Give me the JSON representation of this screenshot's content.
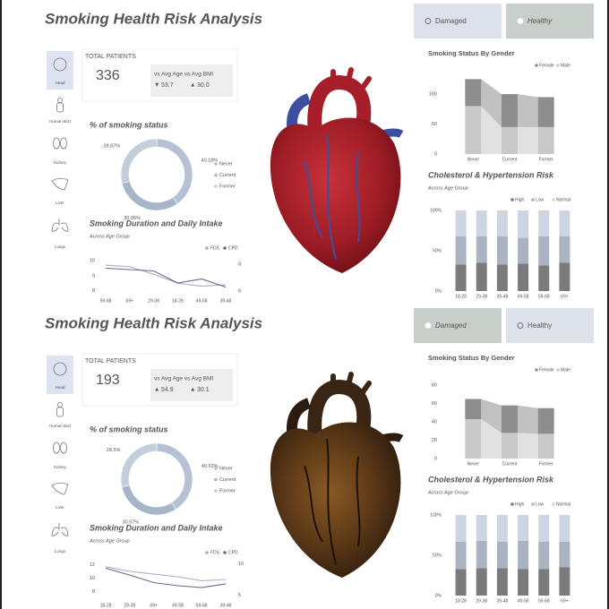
{
  "panels": [
    {
      "title": "Smoking Health Risk Analysis",
      "buttons": [
        "Damaged",
        "Healthy"
      ],
      "selected_button": 1,
      "nav": [
        "Head",
        "Human Bod",
        "Kidney",
        "Liver",
        "Lungs"
      ],
      "selected_nav": 0,
      "heart": "healthy",
      "kpi": {
        "label": "TOTAL PATIENTS",
        "value": 336,
        "compare_label": "vs Avg Age vs Avg BMI",
        "age": {
          "arrow": "▼",
          "value": "53.7"
        },
        "bmi": {
          "arrow": "▲",
          "value": "30.0"
        }
      },
      "donut": {
        "type": "donut",
        "title": "% of smoking status",
        "categories": [
          "Never",
          "Current",
          "Former"
        ],
        "values": [
          40.18,
          30.95,
          28.87
        ],
        "value_labels": [
          "40.18%",
          "30.95%",
          "28.87%"
        ],
        "colors": [
          "#b4c2d3",
          "#a6b5c8",
          "#c3cedb"
        ]
      },
      "line": {
        "type": "line",
        "title": "Smoking Duration and Daily Intake",
        "subtitle": "Across Age Group",
        "categories": [
          "59-68",
          "69+",
          "29-38",
          "18-28",
          "49-58",
          "39-48"
        ],
        "series": [
          {
            "name": "FDS",
            "color": "#a3aec0",
            "values": [
              9.7,
              9.6,
              9.1,
              8.5,
              8.3,
              8.4
            ]
          },
          {
            "name": "CPD",
            "color": "#6f6590",
            "axis": "y2",
            "values": [
              7.7,
              7.6,
              7.5,
              6.6,
              6.9,
              6.3
            ]
          }
        ],
        "ylim": [
          7.8,
          10.3
        ],
        "yticks": [
          8,
          9,
          10
        ],
        "y2lim": [
          5.8,
          8.6
        ],
        "y2ticks": [
          6,
          8
        ]
      },
      "ribbon": {
        "type": "ribbon",
        "title": "Smoking Status By Gender",
        "categories": [
          "Never",
          "Current",
          "Former"
        ],
        "series": [
          {
            "name": "Female",
            "color": "#8e8e8e",
            "values": [
              45,
              55,
              50
            ]
          },
          {
            "name": "Male",
            "color": "#c9c9c9",
            "values": [
              80,
              45,
              45
            ]
          }
        ],
        "ylim": [
          0,
          130
        ],
        "yticks": [
          0,
          50,
          100
        ]
      },
      "stacked": {
        "type": "stacked_bar_100",
        "title": "Cholesterol & Hypertension Risk",
        "subtitle": "Across Age Group",
        "categories": [
          "18-28",
          "29-38",
          "39-48",
          "49-58",
          "59-68",
          "69+"
        ],
        "series": [
          {
            "name": "High",
            "color": "#7b7b7d",
            "values": [
              33,
              35,
              33,
              34,
              32,
              35
            ]
          },
          {
            "name": "Low",
            "color": "#a9b3c1",
            "values": [
              35,
              33,
              35,
              32,
              36,
              33
            ]
          },
          {
            "name": "Normal",
            "color": "#ccd5e1",
            "values": [
              32,
              32,
              32,
              34,
              32,
              32
            ]
          }
        ],
        "ylim": [
          0,
          100
        ],
        "yticks": [
          {
            "value": 0,
            "label": "0%"
          },
          {
            "value": 50,
            "label": "50%"
          },
          {
            "value": 100,
            "label": "100%"
          }
        ]
      }
    },
    {
      "title": "Smoking Health Risk Analysis",
      "buttons": [
        "Damaged",
        "Healthy"
      ],
      "selected_button": 0,
      "nav": [
        "Head",
        "Human Bod",
        "Kidney",
        "Liver",
        "Lungs"
      ],
      "selected_nav": 0,
      "heart": "damaged",
      "kpi": {
        "label": "TOTAL PATIENTS",
        "value": 193,
        "compare_label": "vs Avg Age vs Avg BMI",
        "age": {
          "arrow": "▲",
          "value": "54.9"
        },
        "bmi": {
          "arrow": "▲",
          "value": "30.1"
        }
      },
      "donut": {
        "type": "donut",
        "title": "% of smoking status",
        "categories": [
          "Never",
          "Current",
          "Former"
        ],
        "values": [
          40.93,
          30.57,
          28.5
        ],
        "value_labels": [
          "40.93%",
          "30.57%",
          "28.5%"
        ],
        "colors": [
          "#b4c2d3",
          "#a6b5c8",
          "#c3cedb"
        ]
      },
      "line": {
        "type": "line",
        "title": "Smoking Duration and Daily Intake",
        "subtitle": "Across Age Group",
        "categories": [
          "18-28",
          "29-38",
          "69+",
          "49-58",
          "59-68",
          "39-48"
        ],
        "series": [
          {
            "name": "FDS",
            "color": "#a3aec0",
            "values": [
              11.7,
              11.0,
              10.6,
              10.2,
              9.6,
              9.8
            ]
          },
          {
            "name": "CPD",
            "color": "#6f6590",
            "axis": "y2",
            "values": [
              9.3,
              8.2,
              7.0,
              6.5,
              6.2,
              6.8
            ]
          }
        ],
        "ylim": [
          7,
          12.6
        ],
        "yticks": [
          8,
          10,
          12
        ],
        "y2lim": [
          4.5,
          10.5
        ],
        "y2ticks": [
          5,
          10
        ]
      },
      "ribbon": {
        "type": "ribbon",
        "title": "Smoking Status By Gender",
        "categories": [
          "Never",
          "Current",
          "Former"
        ],
        "series": [
          {
            "name": "Female",
            "color": "#8e8e8e",
            "values": [
              22,
              30,
              28
            ]
          },
          {
            "name": "Male",
            "color": "#c9c9c9",
            "values": [
              43,
              28,
              27
            ]
          }
        ],
        "ylim": [
          0,
          85
        ],
        "yticks": [
          0,
          20,
          40,
          60,
          80
        ]
      },
      "stacked": {
        "type": "stacked_bar_100",
        "title": "Cholesterol & Hypertension Risk",
        "subtitle": "Across Age Group",
        "categories": [
          "18-28",
          "29-38",
          "39-48",
          "49-58",
          "59-68",
          "69+"
        ],
        "series": [
          {
            "name": "High",
            "color": "#7b7b7d",
            "values": [
              33,
              34,
              34,
              33,
              33,
              35
            ]
          },
          {
            "name": "Low",
            "color": "#a9b3c1",
            "values": [
              34,
              34,
              33,
              35,
              34,
              32
            ]
          },
          {
            "name": "Normal",
            "color": "#ccd5e1",
            "values": [
              33,
              32,
              33,
              32,
              33,
              33
            ]
          }
        ],
        "ylim": [
          0,
          100
        ],
        "yticks": [
          {
            "value": 0,
            "label": "0%"
          },
          {
            "value": 50,
            "label": "50%"
          },
          {
            "value": 100,
            "label": "100%"
          }
        ]
      }
    }
  ]
}
